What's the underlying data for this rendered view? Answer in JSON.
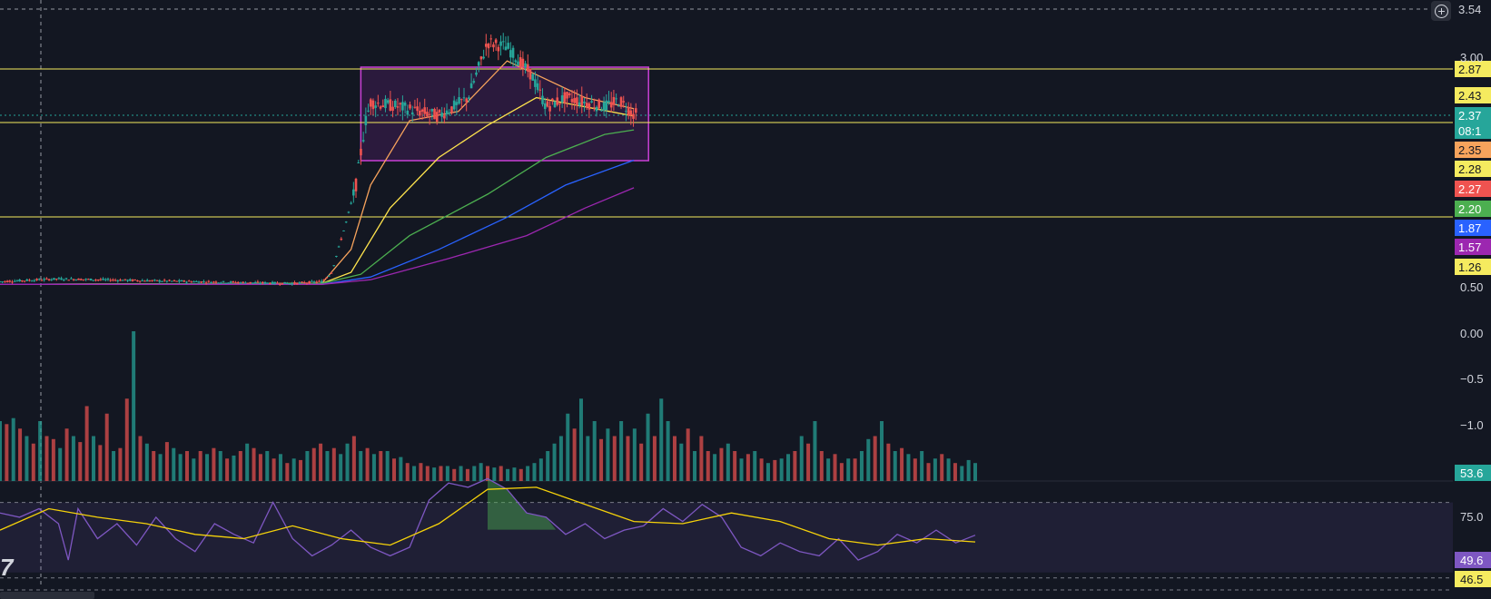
{
  "colors": {
    "background": "#131722",
    "up": "#26a69a",
    "down": "#ef5350",
    "grid": "#2a2e39",
    "hline": "#f5eb5f",
    "rect_stroke": "#c940d6",
    "rect_fill": "#4a2060",
    "ma_fast": "#f7a35c",
    "ma_mid": "#ffe44d",
    "ma_green": "#4caf50",
    "ma_blue": "#2962ff",
    "ma_purple": "#9c27b0",
    "rsi_line": "#7e57c2",
    "rsi_ma": "#f5d20a",
    "rsi_band": "#7e57c2"
  },
  "toolbar": {
    "add_icon": "plus-circle-icon"
  },
  "logo_fragment": "7",
  "price_axis": {
    "tags": [
      {
        "label": "3.54",
        "bg": "#131722",
        "fg": "#d1d4dc"
      },
      {
        "label": "2.87",
        "bg": "#f5eb5f",
        "fg": "#131722"
      },
      {
        "label": "2.43",
        "bg": "#f5eb5f",
        "fg": "#131722"
      },
      {
        "label": "2.37",
        "bg": "#26a69a",
        "fg": "#ffffff"
      },
      {
        "label": "08:1",
        "bg": "#26a69a",
        "fg": "#ffffff"
      },
      {
        "label": "2.35",
        "bg": "#f7a35c",
        "fg": "#131722"
      },
      {
        "label": "2.28",
        "bg": "#f5eb5f",
        "fg": "#131722"
      },
      {
        "label": "2.27",
        "bg": "#ef5350",
        "fg": "#ffffff"
      },
      {
        "label": "2.20",
        "bg": "#4caf50",
        "fg": "#ffffff"
      },
      {
        "label": "1.87",
        "bg": "#2962ff",
        "fg": "#ffffff"
      },
      {
        "label": "1.57",
        "bg": "#9c27b0",
        "fg": "#ffffff"
      },
      {
        "label": "1.26",
        "bg": "#f5eb5f",
        "fg": "#131722"
      }
    ],
    "plain_ticks": [
      "3.00",
      "0.50",
      "0.00",
      "−0.5",
      "−1.0"
    ]
  },
  "volume_axis": {
    "tag": "53.6"
  },
  "rsi_axis": {
    "tick": "75.0",
    "tags": [
      {
        "label": "49.6",
        "bg": "#7e57c2",
        "fg": "#ffffff"
      },
      {
        "label": "46.5",
        "bg": "#f5eb5f",
        "fg": "#131722"
      }
    ]
  },
  "chart_data": [
    {
      "type": "candlestick",
      "title": "",
      "y_axis": "price",
      "horizontal_levels": [
        2.87,
        2.28,
        1.26
      ],
      "range_box": {
        "x_from": 0.37,
        "x_to": 0.665,
        "price_top": 2.87,
        "price_bottom": 1.87
      },
      "series": [
        {
          "kind": "price",
          "points": [
            [
              0,
              0.55
            ],
            [
              0.06,
              0.58
            ],
            [
              0.2,
              0.55
            ],
            [
              0.3,
              0.53
            ],
            [
              0.33,
              0.55
            ],
            [
              0.34,
              0.65
            ],
            [
              0.355,
              1.2
            ],
            [
              0.365,
              1.6
            ],
            [
              0.375,
              2.3
            ],
            [
              0.38,
              2.5
            ],
            [
              0.41,
              2.45
            ],
            [
              0.45,
              2.35
            ],
            [
              0.48,
              2.55
            ],
            [
              0.5,
              3.15
            ],
            [
              0.52,
              3.1
            ],
            [
              0.545,
              2.8
            ],
            [
              0.56,
              2.45
            ],
            [
              0.58,
              2.55
            ],
            [
              0.6,
              2.5
            ],
            [
              0.62,
              2.45
            ],
            [
              0.635,
              2.52
            ],
            [
              0.65,
              2.37
            ]
          ]
        },
        {
          "kind": "ma_fast",
          "points": [
            [
              0,
              0.52
            ],
            [
              0.33,
              0.53
            ],
            [
              0.36,
              0.9
            ],
            [
              0.38,
              1.6
            ],
            [
              0.42,
              2.3
            ],
            [
              0.47,
              2.4
            ],
            [
              0.52,
              2.95
            ],
            [
              0.55,
              2.8
            ],
            [
              0.6,
              2.55
            ],
            [
              0.65,
              2.43
            ]
          ]
        },
        {
          "kind": "ma_mid",
          "points": [
            [
              0,
              0.52
            ],
            [
              0.33,
              0.53
            ],
            [
              0.36,
              0.65
            ],
            [
              0.4,
              1.35
            ],
            [
              0.45,
              1.9
            ],
            [
              0.5,
              2.25
            ],
            [
              0.55,
              2.55
            ],
            [
              0.6,
              2.45
            ],
            [
              0.65,
              2.35
            ]
          ]
        },
        {
          "kind": "ma_green",
          "points": [
            [
              0,
              0.52
            ],
            [
              0.33,
              0.53
            ],
            [
              0.37,
              0.63
            ],
            [
              0.42,
              1.05
            ],
            [
              0.5,
              1.5
            ],
            [
              0.56,
              1.9
            ],
            [
              0.62,
              2.15
            ],
            [
              0.65,
              2.2
            ]
          ]
        },
        {
          "kind": "ma_blue",
          "points": [
            [
              0,
              0.52
            ],
            [
              0.33,
              0.52
            ],
            [
              0.38,
              0.6
            ],
            [
              0.45,
              0.9
            ],
            [
              0.52,
              1.25
            ],
            [
              0.58,
              1.6
            ],
            [
              0.65,
              1.87
            ]
          ]
        },
        {
          "kind": "ma_purple",
          "points": [
            [
              0,
              0.52
            ],
            [
              0.33,
              0.52
            ],
            [
              0.38,
              0.57
            ],
            [
              0.46,
              0.8
            ],
            [
              0.54,
              1.05
            ],
            [
              0.6,
              1.35
            ],
            [
              0.65,
              1.57
            ]
          ]
        }
      ]
    },
    {
      "type": "bar",
      "title": "",
      "y_axis": "volume",
      "note": "volume histogram, relative heights 0-1",
      "values": [
        0.4,
        0.38,
        0.42,
        0.35,
        0.3,
        0.25,
        0.4,
        0.3,
        0.28,
        0.22,
        0.35,
        0.3,
        0.26,
        0.5,
        0.3,
        0.24,
        0.45,
        0.2,
        0.22,
        0.55,
        1.0,
        0.3,
        0.25,
        0.2,
        0.18,
        0.26,
        0.22,
        0.18,
        0.2,
        0.15,
        0.2,
        0.18,
        0.22,
        0.2,
        0.15,
        0.17,
        0.2,
        0.25,
        0.22,
        0.18,
        0.2,
        0.15,
        0.18,
        0.12,
        0.15,
        0.14,
        0.2,
        0.22,
        0.25,
        0.2,
        0.22,
        0.18,
        0.25,
        0.3,
        0.2,
        0.22,
        0.18,
        0.2,
        0.2,
        0.15,
        0.16,
        0.12,
        0.1,
        0.12,
        0.1,
        0.09,
        0.1,
        0.1,
        0.08,
        0.1,
        0.08,
        0.1,
        0.12,
        0.1,
        0.09,
        0.1,
        0.08,
        0.09,
        0.08,
        0.1,
        0.12,
        0.15,
        0.2,
        0.25,
        0.3,
        0.45,
        0.35,
        0.55,
        0.3,
        0.4,
        0.28,
        0.35,
        0.3,
        0.4,
        0.3,
        0.35,
        0.25,
        0.45,
        0.3,
        0.55,
        0.4,
        0.3,
        0.25,
        0.35,
        0.2,
        0.3,
        0.2,
        0.18,
        0.22,
        0.25,
        0.2,
        0.15,
        0.18,
        0.2,
        0.15,
        0.12,
        0.14,
        0.15,
        0.18,
        0.2,
        0.3,
        0.25,
        0.4,
        0.2,
        0.15,
        0.18,
        0.12,
        0.15,
        0.15,
        0.2,
        0.28,
        0.3,
        0.4,
        0.25,
        0.2,
        0.22,
        0.18,
        0.15,
        0.2,
        0.12,
        0.15,
        0.18,
        0.15,
        0.12,
        0.1,
        0.14,
        0.12
      ],
      "up_flags": [
        1,
        0,
        1,
        0,
        1,
        0,
        1,
        0,
        0,
        1,
        0,
        1,
        0,
        0,
        1,
        0,
        0,
        1,
        0,
        0,
        1,
        0,
        1,
        0,
        1,
        0,
        1,
        1,
        0,
        1,
        0,
        1,
        0,
        1,
        0,
        1,
        0,
        1,
        0,
        0,
        1,
        0,
        1,
        0,
        1,
        0,
        1,
        0,
        0,
        1,
        0,
        1,
        1,
        0,
        1,
        0,
        1,
        0,
        1,
        0,
        1,
        0,
        1,
        0,
        0,
        1,
        0,
        1,
        0,
        1,
        0,
        1,
        1,
        0,
        1,
        0,
        1,
        1,
        0,
        1,
        1,
        1,
        1,
        1,
        1,
        1,
        0,
        1,
        1,
        1,
        0,
        1,
        0,
        1,
        0,
        1,
        0,
        1,
        0,
        1,
        1,
        0,
        1,
        0,
        1,
        0,
        0,
        1,
        0,
        1,
        0,
        1,
        0,
        1,
        0,
        1,
        0,
        1,
        1,
        0,
        1,
        0,
        1,
        0,
        1,
        0,
        0,
        1,
        0,
        1,
        1,
        0,
        1,
        0,
        1,
        0,
        1,
        0,
        1,
        0,
        1,
        0,
        1,
        0,
        1,
        1,
        1
      ]
    },
    {
      "type": "line",
      "title": "",
      "y_axis": "RSI",
      "ylim": [
        30,
        80
      ],
      "bands": [
        70,
        50
      ],
      "series": [
        {
          "kind": "rsi",
          "points": [
            [
              0,
              60
            ],
            [
              0.02,
              58
            ],
            [
              0.04,
              62
            ],
            [
              0.06,
              55
            ],
            [
              0.07,
              38
            ],
            [
              0.08,
              62
            ],
            [
              0.1,
              48
            ],
            [
              0.12,
              55
            ],
            [
              0.14,
              45
            ],
            [
              0.16,
              58
            ],
            [
              0.18,
              48
            ],
            [
              0.2,
              42
            ],
            [
              0.22,
              55
            ],
            [
              0.24,
              50
            ],
            [
              0.26,
              46
            ],
            [
              0.28,
              65
            ],
            [
              0.3,
              48
            ],
            [
              0.32,
              40
            ],
            [
              0.34,
              45
            ],
            [
              0.36,
              52
            ],
            [
              0.38,
              44
            ],
            [
              0.4,
              40
            ],
            [
              0.42,
              44
            ],
            [
              0.44,
              66
            ],
            [
              0.46,
              74
            ],
            [
              0.48,
              72
            ],
            [
              0.5,
              76
            ],
            [
              0.52,
              71
            ],
            [
              0.54,
              60
            ],
            [
              0.56,
              58
            ],
            [
              0.58,
              50
            ],
            [
              0.6,
              55
            ],
            [
              0.62,
              48
            ],
            [
              0.64,
              52
            ],
            [
              0.66,
              54
            ],
            [
              0.68,
              62
            ],
            [
              0.7,
              56
            ],
            [
              0.72,
              64
            ],
            [
              0.74,
              58
            ],
            [
              0.76,
              44
            ],
            [
              0.78,
              40
            ],
            [
              0.8,
              46
            ],
            [
              0.82,
              42
            ],
            [
              0.84,
              40
            ],
            [
              0.86,
              48
            ],
            [
              0.88,
              38
            ],
            [
              0.9,
              42
            ],
            [
              0.92,
              50
            ],
            [
              0.94,
              46
            ],
            [
              0.96,
              52
            ],
            [
              0.98,
              46
            ],
            [
              1,
              49.6
            ]
          ]
        },
        {
          "kind": "rsi_ma",
          "points": [
            [
              0,
              52
            ],
            [
              0.05,
              62
            ],
            [
              0.1,
              58
            ],
            [
              0.15,
              55
            ],
            [
              0.2,
              50
            ],
            [
              0.25,
              48
            ],
            [
              0.3,
              54
            ],
            [
              0.35,
              48
            ],
            [
              0.4,
              45
            ],
            [
              0.45,
              55
            ],
            [
              0.5,
              71
            ],
            [
              0.55,
              72
            ],
            [
              0.6,
              64
            ],
            [
              0.65,
              56
            ],
            [
              0.7,
              55
            ],
            [
              0.75,
              60
            ],
            [
              0.8,
              56
            ],
            [
              0.85,
              48
            ],
            [
              0.9,
              45
            ],
            [
              0.95,
              48
            ],
            [
              1,
              46.5
            ]
          ]
        }
      ]
    }
  ]
}
